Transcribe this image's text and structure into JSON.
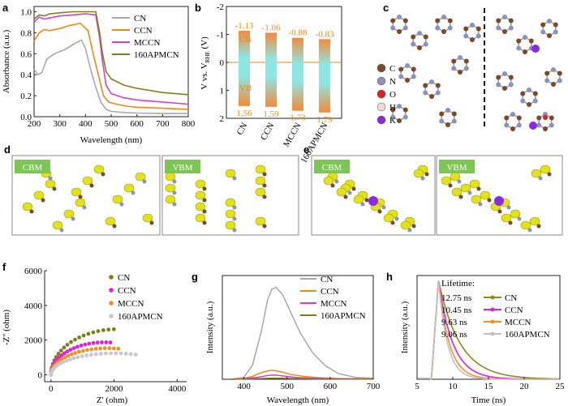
{
  "panels": {
    "a": "a",
    "b": "b",
    "c": "c",
    "d": "d",
    "e": "e",
    "f": "f",
    "g": "g",
    "h": "h"
  },
  "colors": {
    "CN": "#a8a8a8",
    "CCN": "#ee8a12",
    "MCCN": "#d63fd6",
    "160APMCN": "#7f7f19",
    "h_CN": "#8b8b1c",
    "h_CCN": "#e020e0",
    "h_MCCN": "#f0902a",
    "h_160APMCN": "#c0c0c0",
    "bar_top": "#f58a3a",
    "bar_mid": "#8ee6e2",
    "C": "#7a4a2a",
    "N": "#8c92b8",
    "O": "#e02020",
    "H": "#f0d8d8",
    "K": "#8a2be2",
    "density": "#e2e21a",
    "mapbox": "#7dc655"
  },
  "chart_data": [
    {
      "panel": "a",
      "type": "line",
      "xlabel": "Wavelength (nm)",
      "ylabel": "Absorbance (a.u.)",
      "xlim": [
        200,
        800
      ],
      "ylim": [
        0,
        1.05
      ],
      "xticks": [
        "200",
        "300",
        "400",
        "500",
        "600",
        "700",
        "800"
      ],
      "yticks": [
        "0.0",
        "0.2",
        "0.4",
        "0.6",
        "0.8",
        "1.0"
      ],
      "series": [
        {
          "name": "CN",
          "x": [
            200,
            215,
            230,
            250,
            280,
            320,
            360,
            385,
            400,
            420,
            440,
            460,
            480,
            500,
            550,
            600,
            700,
            800
          ],
          "y": [
            0.45,
            0.4,
            0.42,
            0.55,
            0.6,
            0.64,
            0.7,
            0.73,
            0.65,
            0.45,
            0.28,
            0.14,
            0.07,
            0.05,
            0.04,
            0.035,
            0.03,
            0.03
          ]
        },
        {
          "name": "CCN",
          "x": [
            200,
            220,
            240,
            260,
            300,
            340,
            380,
            410,
            430,
            450,
            470,
            490,
            520,
            560,
            600,
            700,
            800
          ],
          "y": [
            0.72,
            0.8,
            0.83,
            0.82,
            0.84,
            0.87,
            0.89,
            0.82,
            0.6,
            0.4,
            0.2,
            0.14,
            0.12,
            0.1,
            0.09,
            0.08,
            0.07
          ]
        },
        {
          "name": "MCCN",
          "x": [
            200,
            220,
            240,
            260,
            300,
            350,
            400,
            440,
            455,
            465,
            480,
            500,
            550,
            600,
            700,
            800
          ],
          "y": [
            0.9,
            0.95,
            0.93,
            0.94,
            0.96,
            0.97,
            0.98,
            0.97,
            0.75,
            0.55,
            0.3,
            0.22,
            0.18,
            0.16,
            0.14,
            0.12
          ]
        },
        {
          "name": "160APMCN",
          "x": [
            200,
            220,
            240,
            260,
            300,
            350,
            400,
            440,
            455,
            465,
            480,
            500,
            550,
            600,
            700,
            800
          ],
          "y": [
            0.93,
            0.97,
            0.96,
            0.98,
            0.99,
            1.0,
            1.0,
            1.0,
            0.8,
            0.62,
            0.43,
            0.36,
            0.3,
            0.27,
            0.23,
            0.21
          ]
        }
      ]
    },
    {
      "panel": "b",
      "type": "bar",
      "ylabel": "V vs. V",
      "ylabel_sub": "RHE",
      "ylabel_unit": " (V)",
      "ylim": [
        -2,
        2
      ],
      "yticks": [
        "-2",
        "-1",
        "0",
        "1",
        "2"
      ],
      "categories": [
        "CN",
        "CCN",
        "MCCN",
        "160APMCN"
      ],
      "cb": [
        -1.13,
        -1.06,
        -0.88,
        -0.83
      ],
      "vb": [
        1.56,
        1.59,
        1.73,
        1.79
      ],
      "cb_text": [
        "-1.13",
        "-1.06",
        "-0.88",
        "-0.83"
      ],
      "vb_text": [
        "1.56",
        "1.59",
        "1.73",
        "1.79"
      ],
      "cb_label": "CB",
      "vb_label": "VB"
    },
    {
      "panel": "f",
      "type": "scatter",
      "xlabel": "Z' (ohm)",
      "ylabel": "-Z'' (ohm)",
      "xlim": [
        -200,
        4300
      ],
      "ylim": [
        -400,
        6000
      ],
      "xticks": [
        "0",
        "2000",
        "4000"
      ],
      "yticks": [
        "0",
        "2000",
        "4000",
        "6000"
      ],
      "series": [
        {
          "name": "CN",
          "R": 4200,
          "cx": 0,
          "sy": 1.25,
          "ang": [
            0,
            0.08,
            0.16,
            0.24,
            0.32,
            0.4,
            0.48,
            0.56,
            0.64,
            0.72,
            0.8,
            0.88,
            0.96,
            1.04,
            1.12,
            1.2,
            1.28,
            1.36,
            1.44,
            1.52
          ]
        },
        {
          "name": "CCN",
          "R": 3400,
          "cx": 0,
          "sy": 1.1,
          "ang": [
            0,
            0.08,
            0.16,
            0.24,
            0.32,
            0.4,
            0.48,
            0.56,
            0.64,
            0.72,
            0.8,
            0.88,
            0.96,
            1.04,
            1.12,
            1.2,
            1.28,
            1.36,
            1.44,
            1.52,
            1.6,
            1.68
          ]
        },
        {
          "name": "MCCN",
          "R": 3600,
          "cx": 0,
          "sy": 0.85,
          "ang": [
            0,
            0.08,
            0.16,
            0.24,
            0.32,
            0.4,
            0.48,
            0.56,
            0.64,
            0.72,
            0.8,
            0.88,
            0.96,
            1.04,
            1.12,
            1.2,
            1.28,
            1.36,
            1.44,
            1.52,
            1.6,
            1.68,
            1.76
          ]
        },
        {
          "name": "160APMCN",
          "R": 4000,
          "cx": 0,
          "sy": 0.62,
          "ang": [
            0,
            0.08,
            0.16,
            0.24,
            0.32,
            0.4,
            0.48,
            0.56,
            0.64,
            0.72,
            0.8,
            0.88,
            0.96,
            1.04,
            1.12,
            1.2,
            1.28,
            1.36,
            1.44,
            1.52,
            1.6,
            1.68,
            1.76,
            1.84,
            1.92
          ]
        }
      ]
    },
    {
      "panel": "g",
      "type": "line",
      "xlabel": "Wavelength (nm)",
      "ylabel": "Intensity (a.u.)",
      "xlim": [
        350,
        700
      ],
      "ylim": [
        0,
        1.05
      ],
      "xticks": [
        "400",
        "500",
        "600",
        "700"
      ],
      "series": [
        {
          "name": "CN",
          "x": [
            370,
            400,
            420,
            440,
            455,
            465,
            475,
            490,
            510,
            530,
            560,
            590,
            620,
            660,
            700
          ],
          "y": [
            0,
            0.02,
            0.15,
            0.5,
            0.85,
            0.96,
            0.98,
            0.9,
            0.7,
            0.5,
            0.28,
            0.14,
            0.06,
            0.02,
            0.01
          ]
        },
        {
          "name": "CCN",
          "x": [
            370,
            400,
            420,
            440,
            455,
            465,
            475,
            490,
            510,
            540,
            580,
            620,
            700
          ],
          "y": [
            0,
            0.01,
            0.03,
            0.07,
            0.09,
            0.095,
            0.09,
            0.075,
            0.05,
            0.03,
            0.015,
            0.008,
            0.004
          ]
        },
        {
          "name": "MCCN",
          "x": [
            370,
            400,
            430,
            455,
            470,
            490,
            520,
            560,
            620,
            700
          ],
          "y": [
            0,
            0.005,
            0.02,
            0.04,
            0.045,
            0.035,
            0.02,
            0.01,
            0.005,
            0.003
          ]
        },
        {
          "name": "160APMCN",
          "x": [
            370,
            420,
            470,
            520,
            600,
            700
          ],
          "y": [
            0,
            0.005,
            0.012,
            0.008,
            0.004,
            0.002
          ]
        }
      ]
    },
    {
      "panel": "h",
      "type": "line",
      "xlabel": "Time (ns)",
      "ylabel": "Intensity (a.u.)",
      "xlim": [
        5,
        25
      ],
      "ylim": [
        0,
        1.05
      ],
      "xticks": [
        "5",
        "10",
        "15",
        "20",
        "25"
      ],
      "legend_title": "Lifetime:",
      "series": [
        {
          "name": "CN",
          "lifetime": "12.75 ns",
          "tau": 3.0
        },
        {
          "name": "CCN",
          "lifetime": "10.45 ns",
          "tau": 2.0
        },
        {
          "name": "MCCN",
          "lifetime": "9.63 ns",
          "tau": 1.5
        },
        {
          "name": "160APMCN",
          "lifetime": "9.06 ns",
          "tau": 1.25
        }
      ]
    }
  ],
  "legend_c": [
    {
      "label": "C"
    },
    {
      "label": "N"
    },
    {
      "label": "O"
    },
    {
      "label": "H"
    },
    {
      "label": "K"
    }
  ],
  "boxes": {
    "d_cbm": "CBM",
    "d_vbm": "VBM",
    "e_cbm": "CBM",
    "e_vbm": "VBM"
  }
}
